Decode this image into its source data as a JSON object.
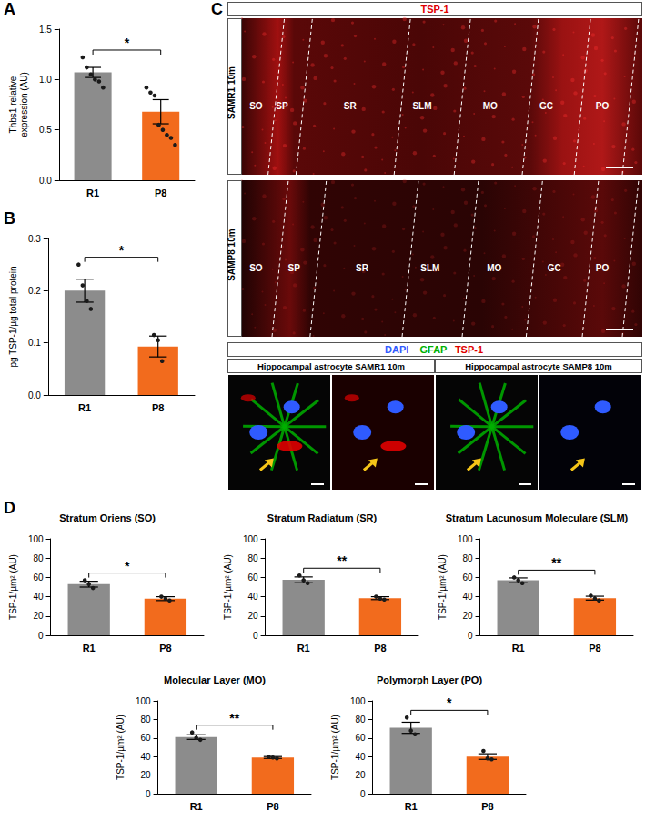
{
  "chart_data": [
    {
      "panel": "A",
      "type": "bar",
      "ylabel": "Thbs1 relative expression (AU)",
      "categories": [
        "R1",
        "P8"
      ],
      "colors": [
        "#8c8c8c",
        "#f26b1d"
      ],
      "values": [
        1.07,
        0.68
      ],
      "errors": [
        0.05,
        0.12
      ],
      "points": [
        [
          1.22,
          1.12,
          1.05,
          1.0,
          0.98,
          0.92
        ],
        [
          0.92,
          0.87,
          0.84,
          0.55,
          0.5,
          0.45,
          0.42,
          0.35
        ]
      ],
      "significance": "*",
      "ylim": [
        0,
        1.5
      ],
      "yticks": [
        {
          "value": 0,
          "label": "0.0"
        },
        {
          "value": 0.5,
          "label": "0.5"
        },
        {
          "value": 1,
          "label": "1.0"
        },
        {
          "value": 1.5,
          "label": "1.5"
        }
      ]
    },
    {
      "panel": "B",
      "type": "bar",
      "ylabel": "pg TSP-1/µg total protein",
      "categories": [
        "R1",
        "P8"
      ],
      "colors": [
        "#8c8c8c",
        "#f26b1d"
      ],
      "values": [
        0.2,
        0.093
      ],
      "errors": [
        0.022,
        0.02
      ],
      "points": [
        [
          0.25,
          0.21,
          0.18,
          0.165
        ],
        [
          0.115,
          0.105,
          0.065
        ]
      ],
      "significance": "*",
      "ylim": [
        0,
        0.3
      ],
      "yticks": [
        {
          "value": 0,
          "label": "0.0"
        },
        {
          "value": 0.1,
          "label": "0.1"
        },
        {
          "value": 0.2,
          "label": "0.2"
        },
        {
          "value": 0.3,
          "label": "0.3"
        }
      ]
    },
    {
      "panel": "D",
      "type": "bar",
      "title": "Stratum Oriens (SO)",
      "ylabel": "TSP-1/µm² (AU)",
      "categories": [
        "R1",
        "P8"
      ],
      "colors": [
        "#8c8c8c",
        "#f26b1d"
      ],
      "values": [
        53,
        38
      ],
      "errors": [
        3,
        2
      ],
      "points": [
        [
          57,
          53,
          49
        ],
        [
          40,
          38,
          36
        ]
      ],
      "significance": "*",
      "ylim": [
        0,
        100
      ],
      "yticks": [
        0,
        20,
        40,
        60,
        80,
        100
      ]
    },
    {
      "type": "bar",
      "title": "Stratum Radiatum (SR)",
      "ylabel": "TSP-1/µm² (AU)",
      "categories": [
        "R1",
        "P8"
      ],
      "colors": [
        "#8c8c8c",
        "#f26b1d"
      ],
      "values": [
        57.5,
        38.5
      ],
      "errors": [
        3,
        1.5
      ],
      "points": [
        [
          62,
          57,
          54
        ],
        [
          40,
          38,
          37
        ]
      ],
      "significance": "**",
      "ylim": [
        0,
        100
      ],
      "yticks": [
        0,
        20,
        40,
        60,
        80,
        100
      ]
    },
    {
      "type": "bar",
      "title": "Stratum Lacunosum Moleculare (SLM)",
      "ylabel": "TSP-1/µm² (AU)",
      "categories": [
        "R1",
        "P8"
      ],
      "colors": [
        "#8c8c8c",
        "#f26b1d"
      ],
      "values": [
        57,
        38.5
      ],
      "errors": [
        2.5,
        2
      ],
      "points": [
        [
          60,
          57,
          54
        ],
        [
          41,
          38,
          36
        ]
      ],
      "significance": "**",
      "ylim": [
        0,
        100
      ],
      "yticks": [
        0,
        20,
        40,
        60,
        80,
        100
      ]
    },
    {
      "type": "bar",
      "title": "Molecular Layer (MO)",
      "ylabel": "TSP-1/µm² (AU)",
      "categories": [
        "R1",
        "P8"
      ],
      "colors": [
        "#8c8c8c",
        "#f26b1d"
      ],
      "values": [
        61,
        39
      ],
      "errors": [
        2.5,
        1
      ],
      "points": [
        [
          66,
          60,
          58
        ],
        [
          40,
          39,
          38
        ]
      ],
      "significance": "**",
      "ylim": [
        0,
        100
      ],
      "yticks": [
        0,
        20,
        40,
        60,
        80,
        100
      ]
    },
    {
      "type": "bar",
      "title": "Polymorph Layer (PO)",
      "ylabel": "TSP-1/µm² (AU)",
      "categories": [
        "R1",
        "P8"
      ],
      "colors": [
        "#8c8c8c",
        "#f26b1d"
      ],
      "values": [
        71,
        40
      ],
      "errors": [
        6,
        3
      ],
      "points": [
        [
          82,
          68,
          64
        ],
        [
          46,
          38,
          37
        ]
      ],
      "significance": "*",
      "ylim": [
        0,
        100
      ],
      "yticks": [
        0,
        20,
        40,
        60,
        80,
        100
      ]
    }
  ],
  "image_panel": {
    "panel": "C",
    "header": "TSP-1",
    "sections": [
      {
        "label": "SAMR1 10m",
        "layers": [
          "SO",
          "SP",
          "SR",
          "SLM",
          "MO",
          "GC",
          "PO"
        ]
      },
      {
        "label": "SAMP8 10m",
        "layers": [
          "SO",
          "SP",
          "SR",
          "SLM",
          "MO",
          "GC",
          "PO"
        ]
      }
    ],
    "channels": [
      {
        "name": "DAPI",
        "color": "#2f5bff"
      },
      {
        "name": "GFAP",
        "color": "#00b000"
      },
      {
        "name": "TSP-1",
        "color": "#e00000"
      }
    ],
    "insets": [
      "Hippocampal astrocyte SAMR1 10m",
      "Hippocampal astrocyte SAMP8 10m"
    ]
  }
}
